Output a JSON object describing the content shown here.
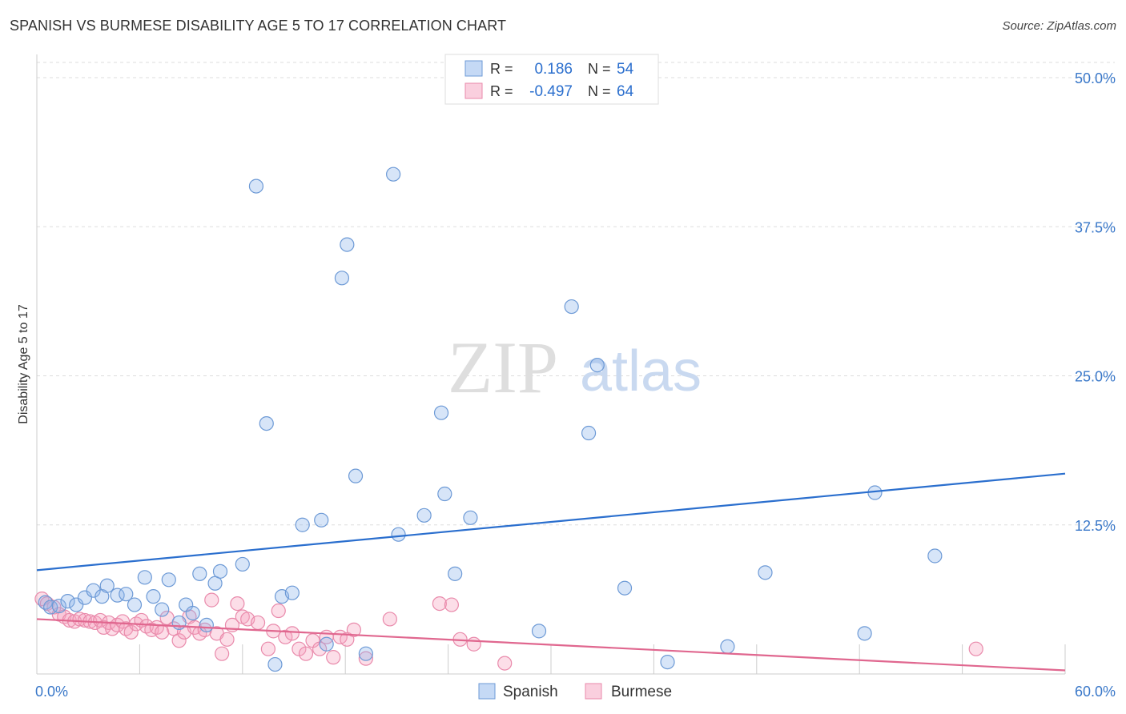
{
  "header": {
    "title": "SPANISH VS BURMESE DISABILITY AGE 5 TO 17 CORRELATION CHART",
    "source": "Source: ZipAtlas.com"
  },
  "watermark": {
    "zip": "ZIP",
    "atlas": "atlas"
  },
  "colors": {
    "spanish_fill": "rgba(140,180,235,0.35)",
    "spanish_stroke": "#6d9ad6",
    "spanish_line": "#2b6fce",
    "burmese_fill": "rgba(245,160,190,0.35)",
    "burmese_stroke": "#e98aab",
    "burmese_line": "#e0678f",
    "tick_label": "#3a78c9",
    "grid": "#dddddd"
  },
  "chart_data": {
    "type": "scatter",
    "title": "SPANISH VS BURMESE DISABILITY AGE 5 TO 17 CORRELATION CHART",
    "xlabel": "",
    "ylabel": "Disability Age 5 to 17",
    "xlim": [
      0,
      60
    ],
    "ylim": [
      0,
      52
    ],
    "x_tick_labels": [
      "0.0%",
      "60.0%"
    ],
    "y_ticks": [
      12.5,
      25.0,
      37.5,
      50.0
    ],
    "y_tick_labels": [
      "12.5%",
      "25.0%",
      "37.5%",
      "50.0%"
    ],
    "grid": true,
    "legend": {
      "position": "top-center",
      "entries": [
        {
          "r_label": "R =",
          "r_value": "0.186",
          "n_label": "N =",
          "n_value": "54"
        },
        {
          "r_label": "R =",
          "r_value": "-0.497",
          "n_label": "N =",
          "n_value": "64"
        }
      ]
    },
    "bottom_legend": [
      "Spanish",
      "Burmese"
    ],
    "series": [
      {
        "name": "Spanish",
        "trend": {
          "x": [
            0,
            60
          ],
          "y": [
            8.7,
            16.8
          ]
        },
        "points": [
          [
            0.5,
            6.0
          ],
          [
            0.8,
            5.6
          ],
          [
            1.3,
            5.7
          ],
          [
            1.8,
            6.1
          ],
          [
            2.3,
            5.8
          ],
          [
            2.8,
            6.4
          ],
          [
            3.3,
            7.0
          ],
          [
            3.8,
            6.5
          ],
          [
            4.1,
            7.4
          ],
          [
            4.7,
            6.6
          ],
          [
            5.2,
            6.7
          ],
          [
            5.7,
            5.8
          ],
          [
            6.3,
            8.1
          ],
          [
            6.8,
            6.5
          ],
          [
            7.3,
            5.4
          ],
          [
            7.7,
            7.9
          ],
          [
            8.3,
            4.3
          ],
          [
            8.7,
            5.8
          ],
          [
            9.1,
            5.1
          ],
          [
            9.5,
            8.4
          ],
          [
            9.9,
            4.1
          ],
          [
            10.4,
            7.6
          ],
          [
            10.7,
            8.6
          ],
          [
            12.0,
            9.2
          ],
          [
            12.8,
            40.9
          ],
          [
            13.4,
            21.0
          ],
          [
            13.9,
            0.8
          ],
          [
            14.3,
            6.5
          ],
          [
            14.9,
            6.8
          ],
          [
            15.5,
            12.5
          ],
          [
            16.6,
            12.9
          ],
          [
            16.9,
            2.5
          ],
          [
            17.8,
            33.2
          ],
          [
            18.1,
            36.0
          ],
          [
            18.6,
            16.6
          ],
          [
            19.2,
            1.7
          ],
          [
            20.8,
            41.9
          ],
          [
            21.1,
            11.7
          ],
          [
            22.6,
            13.3
          ],
          [
            23.6,
            21.9
          ],
          [
            23.8,
            15.1
          ],
          [
            24.4,
            8.4
          ],
          [
            25.3,
            13.1
          ],
          [
            29.3,
            3.6
          ],
          [
            31.2,
            30.8
          ],
          [
            32.2,
            20.2
          ],
          [
            32.7,
            25.9
          ],
          [
            34.3,
            7.2
          ],
          [
            36.8,
            1.0
          ],
          [
            40.3,
            2.3
          ],
          [
            42.5,
            8.5
          ],
          [
            48.3,
            3.4
          ],
          [
            48.9,
            15.2
          ],
          [
            52.4,
            9.9
          ]
        ]
      },
      {
        "name": "Burmese",
        "trend": {
          "x": [
            0,
            60
          ],
          "y": [
            4.6,
            0.3
          ]
        },
        "points": [
          [
            0.3,
            6.3
          ],
          [
            0.6,
            5.9
          ],
          [
            1.0,
            5.6
          ],
          [
            1.3,
            5.0
          ],
          [
            1.6,
            4.8
          ],
          [
            1.9,
            4.5
          ],
          [
            2.2,
            4.4
          ],
          [
            2.5,
            4.6
          ],
          [
            2.8,
            4.5
          ],
          [
            3.1,
            4.4
          ],
          [
            3.4,
            4.3
          ],
          [
            3.7,
            4.5
          ],
          [
            3.9,
            3.9
          ],
          [
            4.2,
            4.3
          ],
          [
            4.4,
            3.8
          ],
          [
            4.7,
            4.1
          ],
          [
            5.0,
            4.4
          ],
          [
            5.2,
            3.8
          ],
          [
            5.5,
            3.5
          ],
          [
            5.8,
            4.2
          ],
          [
            6.1,
            4.5
          ],
          [
            6.4,
            4.0
          ],
          [
            6.7,
            3.7
          ],
          [
            7.0,
            3.9
          ],
          [
            7.3,
            3.5
          ],
          [
            7.6,
            4.7
          ],
          [
            8.0,
            3.8
          ],
          [
            8.3,
            2.8
          ],
          [
            8.6,
            3.5
          ],
          [
            8.9,
            4.8
          ],
          [
            9.2,
            3.9
          ],
          [
            9.5,
            3.4
          ],
          [
            9.8,
            3.7
          ],
          [
            10.2,
            6.2
          ],
          [
            10.5,
            3.4
          ],
          [
            10.8,
            1.7
          ],
          [
            11.1,
            2.9
          ],
          [
            11.4,
            4.1
          ],
          [
            11.7,
            5.9
          ],
          [
            12.0,
            4.8
          ],
          [
            12.3,
            4.6
          ],
          [
            12.9,
            4.3
          ],
          [
            13.5,
            2.1
          ],
          [
            13.8,
            3.6
          ],
          [
            14.1,
            5.3
          ],
          [
            14.5,
            3.1
          ],
          [
            14.9,
            3.4
          ],
          [
            15.3,
            2.1
          ],
          [
            15.7,
            1.7
          ],
          [
            16.1,
            2.8
          ],
          [
            16.5,
            2.1
          ],
          [
            16.9,
            3.1
          ],
          [
            17.3,
            1.4
          ],
          [
            17.7,
            3.1
          ],
          [
            18.1,
            2.9
          ],
          [
            18.5,
            3.7
          ],
          [
            19.2,
            1.3
          ],
          [
            20.6,
            4.6
          ],
          [
            23.5,
            5.9
          ],
          [
            24.2,
            5.8
          ],
          [
            24.7,
            2.9
          ],
          [
            25.5,
            2.5
          ],
          [
            27.3,
            0.9
          ],
          [
            54.8,
            2.1
          ]
        ]
      }
    ]
  }
}
